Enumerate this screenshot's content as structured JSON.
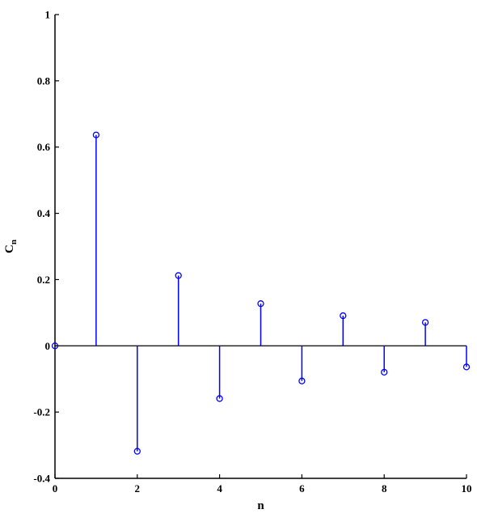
{
  "chart_data": {
    "type": "stem",
    "xlabel": "n",
    "ylabel": {
      "main": "C",
      "sub": "n"
    },
    "xlim": [
      0,
      10
    ],
    "ylim": [
      -0.4,
      1
    ],
    "xticks": [
      "0",
      "2",
      "4",
      "6",
      "8",
      "10"
    ],
    "yticks": [
      "-0.4",
      "-0.2",
      "0",
      "0.2",
      "0.4",
      "0.6",
      "0.8",
      "1"
    ],
    "x": [
      0,
      1,
      2,
      3,
      4,
      5,
      6,
      7,
      8,
      9,
      10
    ],
    "y": [
      0,
      0.6366,
      -0.3183,
      0.2122,
      -0.1592,
      0.1273,
      -0.1061,
      0.0909,
      -0.0796,
      0.0707,
      -0.0637
    ],
    "grid": false,
    "color": "#0000ff"
  }
}
